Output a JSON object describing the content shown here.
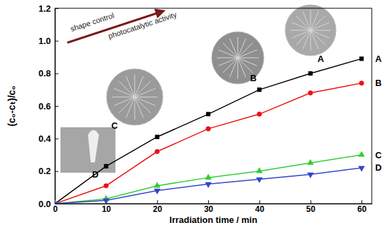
{
  "chart_data": {
    "type": "line",
    "x_label": "Irradiation time / min",
    "y_label": "(c₀-cₜ)/c₀",
    "x": [
      0,
      10,
      20,
      30,
      40,
      50,
      60
    ],
    "series": [
      {
        "name": "A",
        "color": "#000000",
        "marker": "square",
        "values": [
          0,
          0.23,
          0.41,
          0.55,
          0.7,
          0.8,
          0.89
        ]
      },
      {
        "name": "B",
        "color": "#ee1111",
        "marker": "circle",
        "values": [
          0,
          0.11,
          0.32,
          0.46,
          0.55,
          0.68,
          0.74
        ]
      },
      {
        "name": "C",
        "color": "#33cc33",
        "marker": "triangle",
        "values": [
          0,
          0.03,
          0.11,
          0.16,
          0.2,
          0.25,
          0.3
        ]
      },
      {
        "name": "D",
        "color": "#3344cc",
        "marker": "triangle-down",
        "values": [
          0,
          0.02,
          0.08,
          0.12,
          0.15,
          0.18,
          0.22
        ]
      }
    ],
    "xlim": [
      0,
      62
    ],
    "xticks": [
      0,
      10,
      20,
      30,
      40,
      50,
      60
    ],
    "ylim": [
      0,
      1.2
    ],
    "yticks": [
      {
        "value": 0,
        "label": "0.0"
      },
      {
        "value": 0.2,
        "label": "0.2"
      },
      {
        "value": 0.4,
        "label": "0.4"
      },
      {
        "value": 0.6,
        "label": "0.6"
      },
      {
        "value": 0.8,
        "label": "0.8"
      },
      {
        "value": 1.0,
        "label": "1.0"
      },
      {
        "value": 1.2,
        "label": "1.2"
      }
    ],
    "annotations": [
      {
        "text": "shape control"
      },
      {
        "text": "photocatalytic activity"
      }
    ],
    "grid": false,
    "legend": "right"
  }
}
